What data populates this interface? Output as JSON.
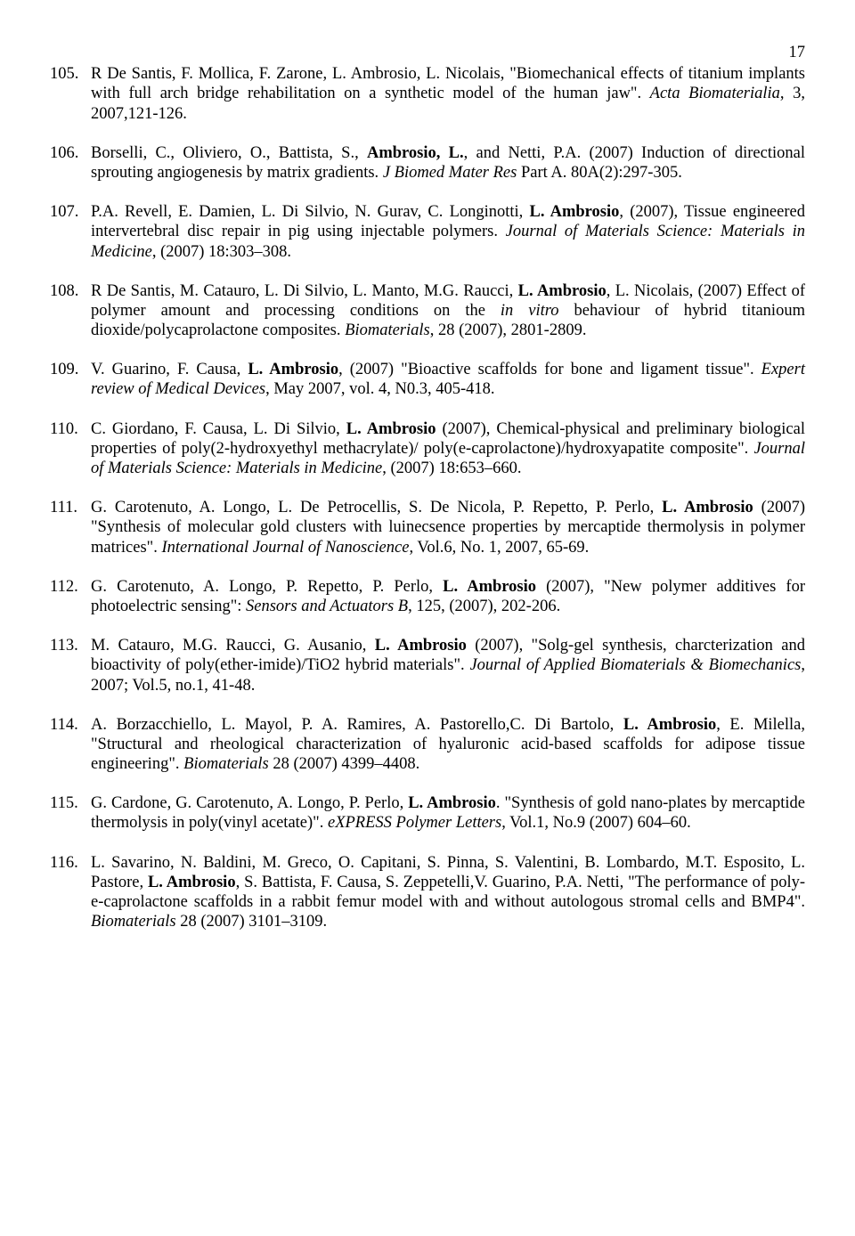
{
  "page_number": "17",
  "references": [
    {
      "num": "105.",
      "segments": [
        {
          "t": "R De Santis, F. Mollica, F. Zarone, L. Ambrosio, L. Nicolais, \"Biomechanical effects of titanium implants with full arch bridge rehabilitation on a synthetic model of the human jaw\". "
        },
        {
          "t": "Acta Biomaterialia",
          "italic": true
        },
        {
          "t": ", 3, 2007,121-126."
        }
      ]
    },
    {
      "num": "106.",
      "segments": [
        {
          "t": "Borselli, C., Oliviero, O., Battista, S., "
        },
        {
          "t": "Ambrosio, L.",
          "bold": true
        },
        {
          "t": ", and Netti, P.A. (2007) Induction of directional sprouting angiogenesis by matrix gradients. "
        },
        {
          "t": "J Biomed Mater Res",
          "italic": true
        },
        {
          "t": " Part A. 80A(2):297-305."
        }
      ]
    },
    {
      "num": "107.",
      "segments": [
        {
          "t": "P.A. Revell, E. Damien, L. Di Silvio, N. Gurav, C. Longinotti, "
        },
        {
          "t": "L. Ambrosio",
          "bold": true
        },
        {
          "t": ", (2007), Tissue engineered intervertebral disc repair in pig using injectable polymers. "
        },
        {
          "t": "Journal of Materials Science: Materials in Medicine",
          "italic": true
        },
        {
          "t": ", (2007) 18:303–308."
        }
      ]
    },
    {
      "num": "108.",
      "segments": [
        {
          "t": "R De Santis, M. Catauro, L. Di Silvio, L. Manto, M.G. Raucci, "
        },
        {
          "t": "L. Ambrosio",
          "bold": true
        },
        {
          "t": ", L. Nicolais, (2007) Effect of polymer amount and processing conditions on the "
        },
        {
          "t": "in vitro",
          "italic": true
        },
        {
          "t": " behaviour of hybrid titanioum dioxide/polycaprolactone composites. "
        },
        {
          "t": "Biomaterials",
          "italic": true
        },
        {
          "t": ", 28 (2007), 2801-2809."
        }
      ]
    },
    {
      "num": "109.",
      "segments": [
        {
          "t": "V. Guarino, F. Causa, "
        },
        {
          "t": "L. Ambrosio",
          "bold": true
        },
        {
          "t": ", (2007) \"Bioactive scaffolds for bone and ligament tissue\". "
        },
        {
          "t": "Expert review of Medical Devices",
          "italic": true
        },
        {
          "t": ", May 2007, vol. 4, N0.3,  405-418."
        }
      ]
    },
    {
      "num": "110.",
      "segments": [
        {
          "t": "C. Giordano, F. Causa, L. Di Silvio, "
        },
        {
          "t": "L. Ambrosio",
          "bold": true
        },
        {
          "t": " (2007), Chemical-physical and preliminary biological properties of poly(2-hydroxyethyl methacrylate)/ poly(e-caprolactone)/hydroxyapatite composite\". "
        },
        {
          "t": "Journal of Materials Science: Materials in Medicine",
          "italic": true
        },
        {
          "t": ", (2007) 18:653–660."
        }
      ]
    },
    {
      "num": "111.",
      "segments": [
        {
          "t": "G. Carotenuto, A. Longo, L. De Petrocellis, S. De Nicola, P. Repetto, P. Perlo, "
        },
        {
          "t": "L. Ambrosio",
          "bold": true
        },
        {
          "t": " (2007) \"Synthesis of molecular gold clusters with luinecsence properties by mercaptide thermolysis in polymer matrices\". "
        },
        {
          "t": "International Journal of Nanoscience",
          "italic": true
        },
        {
          "t": ", Vol.6, No. 1, 2007, 65-69."
        }
      ]
    },
    {
      "num": "112.",
      "segments": [
        {
          "t": "G. Carotenuto, A. Longo, P. Repetto, P. Perlo, "
        },
        {
          "t": "L. Ambrosio",
          "bold": true
        },
        {
          "t": " (2007), \"New polymer additives for photoelectric sensing\": "
        },
        {
          "t": "Sensors and Actuators B",
          "italic": true
        },
        {
          "t": ", 125, (2007), 202-206."
        }
      ]
    },
    {
      "num": "113.",
      "segments": [
        {
          "t": "M. Catauro, M.G. Raucci, G. Ausanio, "
        },
        {
          "t": "L. Ambrosio",
          "bold": true
        },
        {
          "t": " (2007), \"Solg-gel synthesis, charcterization and bioactivity of poly(ether-imide)/TiO2 hybrid materials\". "
        },
        {
          "t": "Journal of Applied Biomaterials & Biomechanics",
          "italic": true
        },
        {
          "t": ", 2007; Vol.5, no.1, 41-48."
        }
      ]
    },
    {
      "num": "114.",
      "segments": [
        {
          "t": "A. Borzacchiello, L. Mayol, P. A. Ramires, A. Pastorello,C. Di Bartolo, "
        },
        {
          "t": "L. Ambrosio",
          "bold": true
        },
        {
          "t": ", E. Milella, \"Structural and rheological characterization of hyaluronic acid-based scaffolds for adipose tissue engineering\". "
        },
        {
          "t": "Biomaterials",
          "italic": true
        },
        {
          "t": " 28 (2007) 4399–4408."
        }
      ]
    },
    {
      "num": "115.",
      "segments": [
        {
          "t": "G. Cardone, G. Carotenuto, A. Longo, P. Perlo, "
        },
        {
          "t": "L. Ambrosio",
          "bold": true
        },
        {
          "t": ". \"Synthesis of gold nano-plates by mercaptide thermolysis in poly(vinyl acetate)\". "
        },
        {
          "t": "eXPRESS Polymer Letters",
          "italic": true
        },
        {
          "t": ", Vol.1, No.9 (2007) 604–60."
        }
      ]
    },
    {
      "num": "116.",
      "segments": [
        {
          "t": "L. Savarino, N. Baldini, M. Greco, O. Capitani, S. Pinna, S. Valentini, B. Lombardo, M.T. Esposito, L. Pastore, "
        },
        {
          "t": "L. Ambrosio",
          "bold": true
        },
        {
          "t": ", S. Battista, F. Causa, S. Zeppetelli,V. Guarino, P.A. Netti, \"The performance of poly-e-caprolactone scaffolds in a rabbit femur model with and without autologous stromal cells and BMP4\". "
        },
        {
          "t": "Biomaterials",
          "italic": true
        },
        {
          "t": " 28 (2007) 3101–3109."
        }
      ]
    }
  ]
}
